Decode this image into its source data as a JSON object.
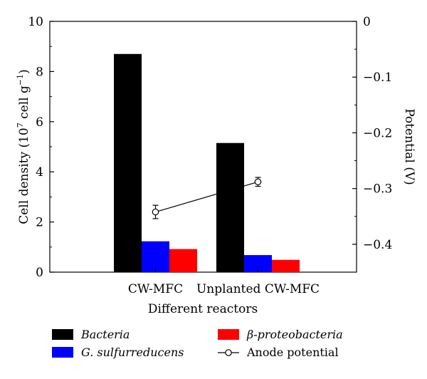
{
  "chart_data": {
    "type": "bar",
    "categories": [
      "CW-MFC",
      "Unplanted CW-MFC"
    ],
    "series": [
      {
        "name": "Bacteria",
        "values": [
          8.7,
          5.15
        ],
        "color": "#000000",
        "italic": true
      },
      {
        "name": "G. sulfurreducens",
        "values": [
          1.23,
          0.68
        ],
        "color": "#0000ff",
        "italic": true
      },
      {
        "name": "β-proteobacteria",
        "values": [
          0.92,
          0.49
        ],
        "color": "#ff0000",
        "italic": true
      }
    ],
    "line_series": {
      "name": "Anode potential",
      "axis": "right",
      "values": [
        -0.342,
        -0.288
      ],
      "errors": [
        0.012,
        0.008
      ]
    },
    "xlabel": "Different reactors",
    "ylabel": "Cell density (10",
    "ylabel_sup7": "7",
    "ylabel_mid": " cell g",
    "ylabel_sup_neg": "−1",
    "ylabel_end": ")",
    "y2label": "Potential (V)",
    "ylim": [
      0,
      10
    ],
    "y2lim": [
      -0.45,
      0
    ],
    "yticks": [
      "0",
      "2",
      "4",
      "6",
      "8",
      "10"
    ],
    "y2ticks": [
      "0",
      "−0.1",
      "−0.2",
      "−0.3",
      "−0.4"
    ],
    "legend_placement": "bottom"
  }
}
